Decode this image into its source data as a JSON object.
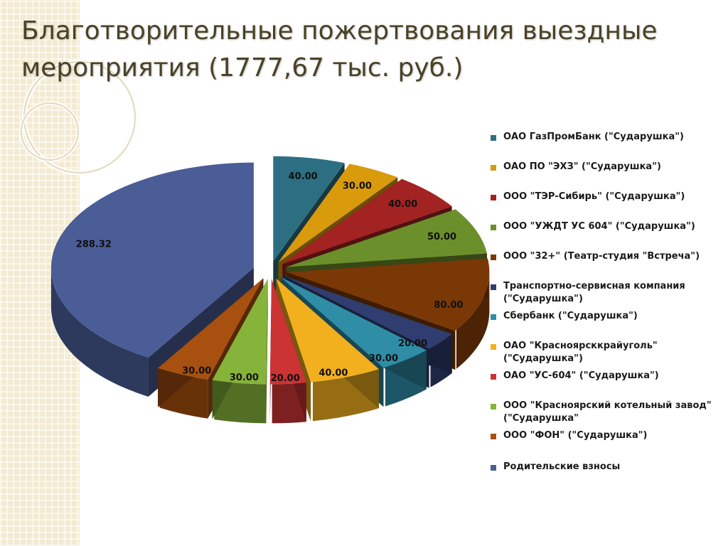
{
  "slide": {
    "title": "Благотворительные пожертвования выездные мероприятия (1777,67 тыс. руб.)"
  },
  "chart_data": {
    "type": "pie",
    "title": "",
    "style": "exploded 3D pie",
    "legend_position": "right",
    "categories": [
      "ОАО ГазПромБанк (\"Сударушка\")",
      "ОАО ПО \"ЭХЗ\" (\"Сударушка\")",
      "ООО \"ТЭР-Сибирь\" (\"Сударушка\")",
      "ООО \"УЖДТ УС 604\" (\"Сударушка\")",
      "ООО \"32+\" (Театр-студия \"Встреча\")",
      "Транспортно-сервисная компания (\"Сударушка\")",
      "Сбербанк (\"Сударушка\")",
      "ОАО \"Красноярсккрайуголь\" (\"Сударушка\")",
      "ОАО \"УС-604\" (\"Сударушка\")",
      "ООО \"Красноярский котельный завод\" (\"Сударушка\"",
      "ООО \"ФОН\" (\"Сударушка\")",
      "Родительские взносы"
    ],
    "values": [
      40.0,
      30.0,
      40.0,
      50.0,
      80.0,
      20.0,
      30.0,
      40.0,
      20.0,
      30.0,
      30.0,
      288.32
    ],
    "value_labels": [
      "40.00",
      "30.00",
      "40.00",
      "50.00",
      "80.00",
      "20.00",
      "30.00",
      "40.00",
      "20.00",
      "30.00",
      "30.00",
      "288.32"
    ],
    "colors": [
      "#2d6f82",
      "#d99a0c",
      "#a32222",
      "#6b8f2a",
      "#7a3806",
      "#2f3d70",
      "#2f8da6",
      "#f2b01e",
      "#cc3333",
      "#86b33a",
      "#a8500f",
      "#4a5d96"
    ]
  }
}
